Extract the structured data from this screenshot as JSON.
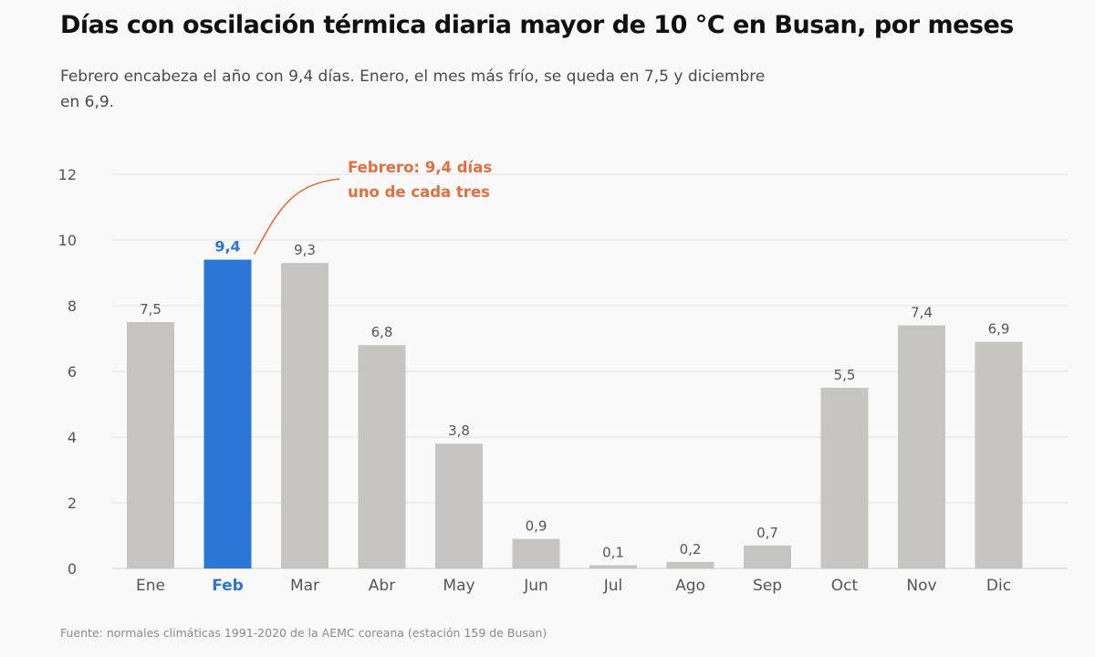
{
  "title": "Días con oscilación térmica diaria mayor de 10 °C en Busan, por meses",
  "subtitle": "Febrero encabeza el año con 9,4 días. Enero, el mes más frío, se queda en 7,5 y diciembre en 6,9.",
  "source": "Fuente: normales climáticas 1991-2020 de la AEMC coreana (estación 159 de Busan)",
  "colors": {
    "highlight": "#2a77d6",
    "bar": "#c6c5c1",
    "annotation": "#e07040",
    "grid": "#e2e2e2",
    "axis_text": "#555555"
  },
  "chart_data": {
    "type": "bar",
    "categories": [
      "Ene",
      "Feb",
      "Mar",
      "Abr",
      "May",
      "Jun",
      "Jul",
      "Ago",
      "Sep",
      "Oct",
      "Nov",
      "Dic"
    ],
    "values": [
      7.5,
      9.4,
      9.3,
      6.8,
      3.8,
      0.9,
      0.1,
      0.2,
      0.7,
      5.5,
      7.4,
      6.9
    ],
    "value_labels": [
      "7,5",
      "9,4",
      "9,3",
      "6,8",
      "3,8",
      "0,9",
      "0,1",
      "0,2",
      "0,7",
      "5,5",
      "7,4",
      "6,9"
    ],
    "highlight_category": "Feb",
    "ylim": [
      0,
      12
    ],
    "yticks": [
      0,
      2,
      4,
      6,
      8,
      10,
      12
    ],
    "grid": true,
    "xlabel": "",
    "ylabel": "",
    "annotation": {
      "category": "Feb",
      "lines": [
        "Febrero: 9,4 días",
        "uno de cada tres"
      ]
    }
  }
}
